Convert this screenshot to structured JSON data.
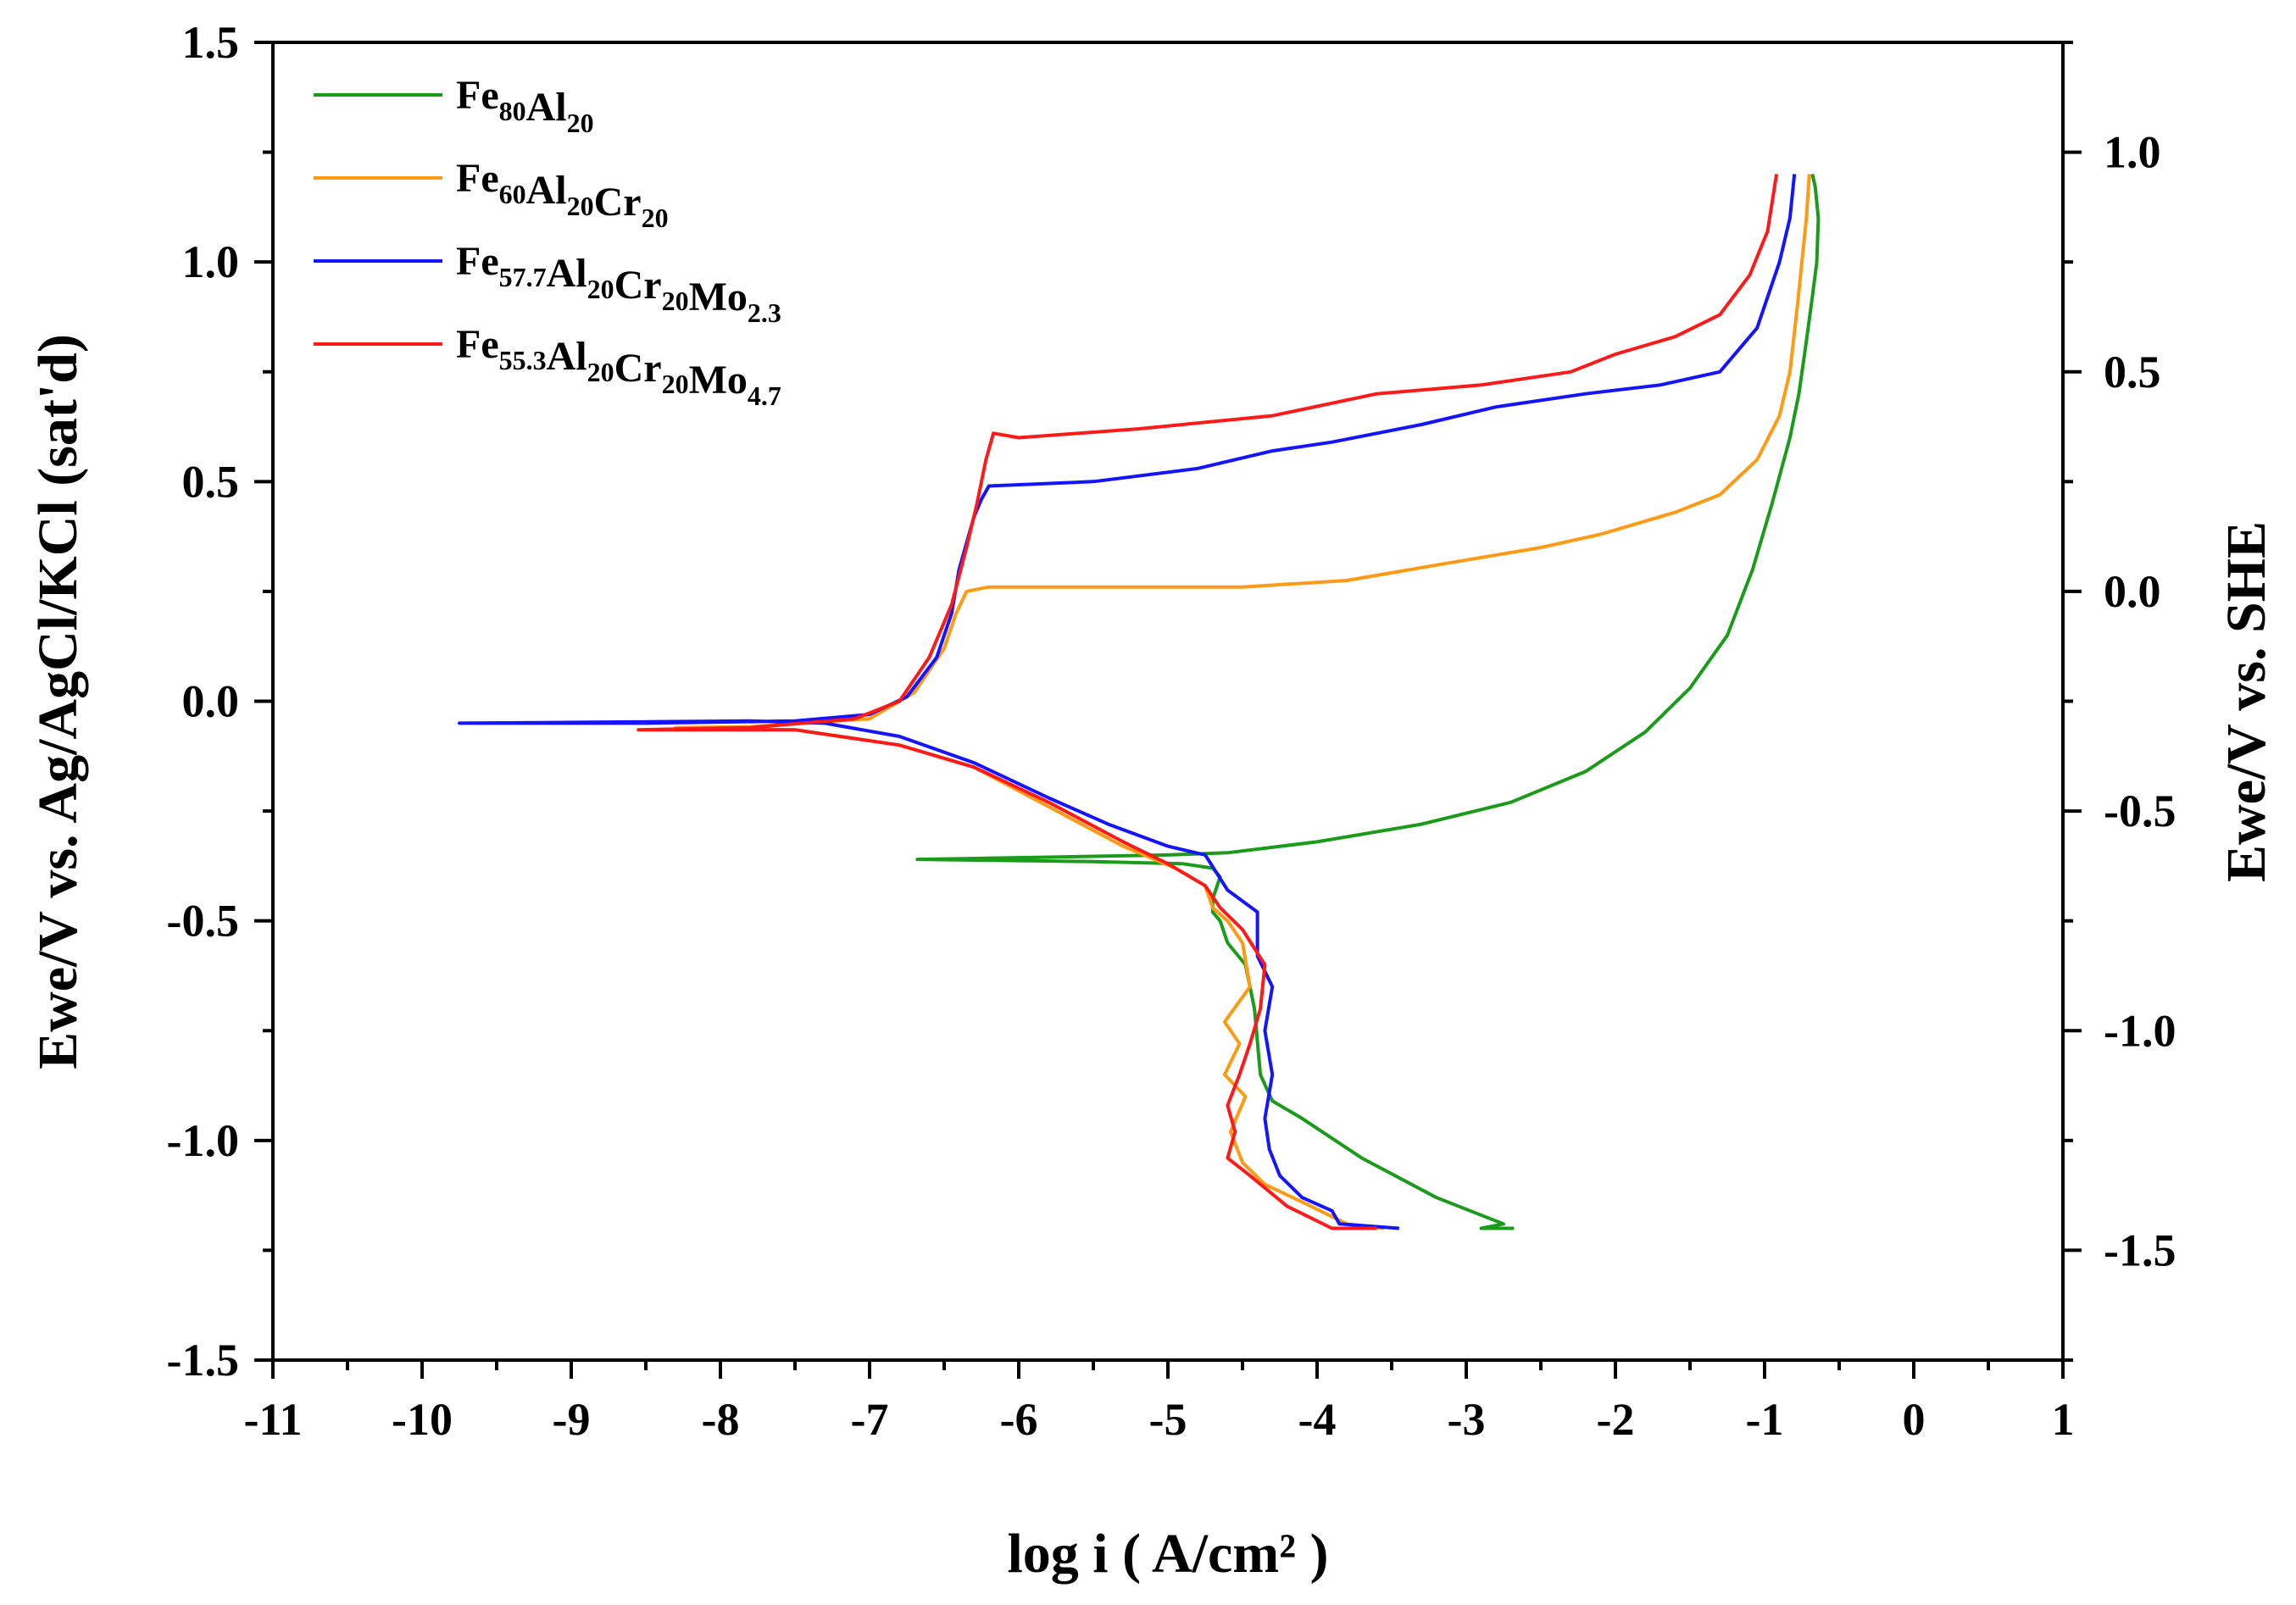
{
  "chart_data": {
    "type": "line",
    "title": "",
    "xlabel": "log i ( A/cm² )",
    "ylabel": "Ewe/V vs. Ag/AgCl/KCl (sat'd)",
    "ylabel_right": "Ewe/V vs. SHE",
    "xlim": [
      -11,
      1
    ],
    "ylim": [
      -1.5,
      1.5
    ],
    "ylim_right": [
      -1.75,
      1.25
    ],
    "x_ticks": [
      "-11",
      "-10",
      "-9",
      "-8",
      "-7",
      "-6",
      "-5",
      "-4",
      "-3",
      "-2",
      "-1",
      "0",
      "1"
    ],
    "y_ticks": [
      "-1.5",
      "-1.0",
      "-0.5",
      "0.0",
      "0.5",
      "1.0",
      "1.5"
    ],
    "y_ticks_right": [
      "-1.5",
      "-1.0",
      "-0.5",
      "0.0",
      "0.5",
      "1.0"
    ],
    "legend_position": "top-left",
    "grid": false,
    "series": [
      {
        "name": "Fe80Al20",
        "label_parts": [
          [
            "Fe",
            "80"
          ],
          [
            "Al",
            "20"
          ]
        ],
        "color": "#1a9b1a",
        "points": [
          [
            -2.68,
            -1.2
          ],
          [
            -2.9,
            -1.2
          ],
          [
            -2.75,
            -1.19
          ],
          [
            -3.2,
            -1.13
          ],
          [
            -3.7,
            -1.04
          ],
          [
            -4.1,
            -0.95
          ],
          [
            -4.3,
            -0.91
          ],
          [
            -4.38,
            -0.85
          ],
          [
            -4.42,
            -0.7
          ],
          [
            -4.48,
            -0.6
          ],
          [
            -4.6,
            -0.55
          ],
          [
            -4.65,
            -0.5
          ],
          [
            -4.7,
            -0.48
          ],
          [
            -4.7,
            -0.45
          ],
          [
            -4.65,
            -0.4
          ],
          [
            -4.7,
            -0.38
          ],
          [
            -4.9,
            -0.37
          ],
          [
            -5.5,
            -0.365
          ],
          [
            -6.68,
            -0.36
          ],
          [
            -5.8,
            -0.355
          ],
          [
            -5.0,
            -0.35
          ],
          [
            -4.6,
            -0.345
          ],
          [
            -4.0,
            -0.32
          ],
          [
            -3.3,
            -0.28
          ],
          [
            -2.7,
            -0.23
          ],
          [
            -2.2,
            -0.16
          ],
          [
            -1.8,
            -0.07
          ],
          [
            -1.5,
            0.03
          ],
          [
            -1.25,
            0.15
          ],
          [
            -1.08,
            0.3
          ],
          [
            -0.95,
            0.45
          ],
          [
            -0.83,
            0.6
          ],
          [
            -0.77,
            0.7
          ],
          [
            -0.72,
            0.82
          ],
          [
            -0.68,
            0.92
          ],
          [
            -0.65,
            1.0
          ],
          [
            -0.64,
            1.1
          ],
          [
            -0.66,
            1.17
          ],
          [
            -0.68,
            1.2
          ]
        ]
      },
      {
        "name": "Fe60Al20Cr20",
        "label_parts": [
          [
            "Fe",
            "60"
          ],
          [
            "Al",
            "20"
          ],
          [
            "Cr",
            "20"
          ]
        ],
        "color": "#ff9a14",
        "points": [
          [
            -3.55,
            -1.2
          ],
          [
            -3.8,
            -1.19
          ],
          [
            -4.1,
            -1.14
          ],
          [
            -4.35,
            -1.1
          ],
          [
            -4.5,
            -1.05
          ],
          [
            -4.58,
            -0.98
          ],
          [
            -4.48,
            -0.9
          ],
          [
            -4.62,
            -0.85
          ],
          [
            -4.52,
            -0.78
          ],
          [
            -4.62,
            -0.73
          ],
          [
            -4.45,
            -0.65
          ],
          [
            -4.5,
            -0.55
          ],
          [
            -4.6,
            -0.5
          ],
          [
            -4.7,
            -0.47
          ],
          [
            -4.75,
            -0.42
          ],
          [
            -4.95,
            -0.38
          ],
          [
            -5.3,
            -0.33
          ],
          [
            -5.8,
            -0.24
          ],
          [
            -6.3,
            -0.15
          ],
          [
            -6.8,
            -0.1
          ],
          [
            -7.5,
            -0.065
          ],
          [
            -8.3,
            -0.06
          ],
          [
            -7.8,
            -0.058
          ],
          [
            -7.0,
            -0.04
          ],
          [
            -6.7,
            0.02
          ],
          [
            -6.5,
            0.12
          ],
          [
            -6.42,
            0.2
          ],
          [
            -6.35,
            0.25
          ],
          [
            -6.2,
            0.26
          ],
          [
            -5.5,
            0.26
          ],
          [
            -4.5,
            0.26
          ],
          [
            -3.8,
            0.275
          ],
          [
            -3.2,
            0.31
          ],
          [
            -2.5,
            0.35
          ],
          [
            -2.1,
            0.38
          ],
          [
            -1.9,
            0.4
          ],
          [
            -1.6,
            0.43
          ],
          [
            -1.3,
            0.47
          ],
          [
            -1.05,
            0.55
          ],
          [
            -0.9,
            0.65
          ],
          [
            -0.83,
            0.75
          ],
          [
            -0.78,
            0.9
          ],
          [
            -0.75,
            1.0
          ],
          [
            -0.72,
            1.1
          ],
          [
            -0.7,
            1.2
          ]
        ]
      },
      {
        "name": "Fe57.7Al20Cr20Mo2.3",
        "label_parts": [
          [
            "Fe",
            "57.7"
          ],
          [
            "Al",
            "20"
          ],
          [
            "Cr",
            "20"
          ],
          [
            "Mo",
            "2.3"
          ]
        ],
        "color": "#1414ff",
        "points": [
          [
            -3.45,
            -1.2
          ],
          [
            -3.85,
            -1.19
          ],
          [
            -3.9,
            -1.16
          ],
          [
            -4.1,
            -1.13
          ],
          [
            -4.25,
            -1.08
          ],
          [
            -4.32,
            -1.02
          ],
          [
            -4.35,
            -0.95
          ],
          [
            -4.3,
            -0.85
          ],
          [
            -4.35,
            -0.75
          ],
          [
            -4.3,
            -0.65
          ],
          [
            -4.4,
            -0.58
          ],
          [
            -4.4,
            -0.48
          ],
          [
            -4.6,
            -0.43
          ],
          [
            -4.75,
            -0.35
          ],
          [
            -5.0,
            -0.33
          ],
          [
            -5.4,
            -0.28
          ],
          [
            -5.8,
            -0.22
          ],
          [
            -6.3,
            -0.14
          ],
          [
            -6.8,
            -0.08
          ],
          [
            -7.3,
            -0.05
          ],
          [
            -7.8,
            -0.045
          ],
          [
            -9.75,
            -0.05
          ],
          [
            -8.5,
            -0.05
          ],
          [
            -7.5,
            -0.045
          ],
          [
            -7.0,
            -0.03
          ],
          [
            -6.75,
            0.01
          ],
          [
            -6.55,
            0.1
          ],
          [
            -6.45,
            0.2
          ],
          [
            -6.4,
            0.3
          ],
          [
            -6.35,
            0.36
          ],
          [
            -6.3,
            0.42
          ],
          [
            -6.25,
            0.46
          ],
          [
            -6.2,
            0.49
          ],
          [
            -5.5,
            0.5
          ],
          [
            -4.8,
            0.53
          ],
          [
            -4.3,
            0.57
          ],
          [
            -3.9,
            0.59
          ],
          [
            -3.3,
            0.63
          ],
          [
            -2.8,
            0.67
          ],
          [
            -2.2,
            0.7
          ],
          [
            -1.7,
            0.72
          ],
          [
            -1.3,
            0.75
          ],
          [
            -1.05,
            0.85
          ],
          [
            -0.9,
            1.0
          ],
          [
            -0.83,
            1.1
          ],
          [
            -0.8,
            1.2
          ]
        ]
      },
      {
        "name": "Fe55.3Al20Cr20Mo4.7",
        "label_parts": [
          [
            "Fe",
            "55.3"
          ],
          [
            "Al",
            "20"
          ],
          [
            "Cr",
            "20"
          ],
          [
            "Mo",
            "4.7"
          ]
        ],
        "color": "#ff1a1a",
        "points": [
          [
            -3.6,
            -1.2
          ],
          [
            -3.9,
            -1.2
          ],
          [
            -4.2,
            -1.15
          ],
          [
            -4.45,
            -1.08
          ],
          [
            -4.6,
            -1.04
          ],
          [
            -4.55,
            -0.98
          ],
          [
            -4.6,
            -0.92
          ],
          [
            -4.52,
            -0.85
          ],
          [
            -4.45,
            -0.78
          ],
          [
            -4.38,
            -0.7
          ],
          [
            -4.35,
            -0.6
          ],
          [
            -4.5,
            -0.52
          ],
          [
            -4.65,
            -0.47
          ],
          [
            -4.75,
            -0.42
          ],
          [
            -5.0,
            -0.37
          ],
          [
            -5.3,
            -0.32
          ],
          [
            -5.8,
            -0.23
          ],
          [
            -6.3,
            -0.15
          ],
          [
            -6.8,
            -0.1
          ],
          [
            -7.5,
            -0.065
          ],
          [
            -8.55,
            -0.065
          ],
          [
            -7.8,
            -0.06
          ],
          [
            -7.1,
            -0.04
          ],
          [
            -6.8,
            0.0
          ],
          [
            -6.6,
            0.1
          ],
          [
            -6.45,
            0.22
          ],
          [
            -6.35,
            0.35
          ],
          [
            -6.28,
            0.45
          ],
          [
            -6.22,
            0.55
          ],
          [
            -6.17,
            0.61
          ],
          [
            -6.0,
            0.6
          ],
          [
            -5.2,
            0.62
          ],
          [
            -4.3,
            0.65
          ],
          [
            -3.6,
            0.7
          ],
          [
            -2.9,
            0.72
          ],
          [
            -2.3,
            0.75
          ],
          [
            -2.0,
            0.79
          ],
          [
            -1.6,
            0.83
          ],
          [
            -1.3,
            0.88
          ],
          [
            -1.1,
            0.97
          ],
          [
            -0.98,
            1.07
          ],
          [
            -0.92,
            1.2
          ]
        ]
      }
    ]
  }
}
